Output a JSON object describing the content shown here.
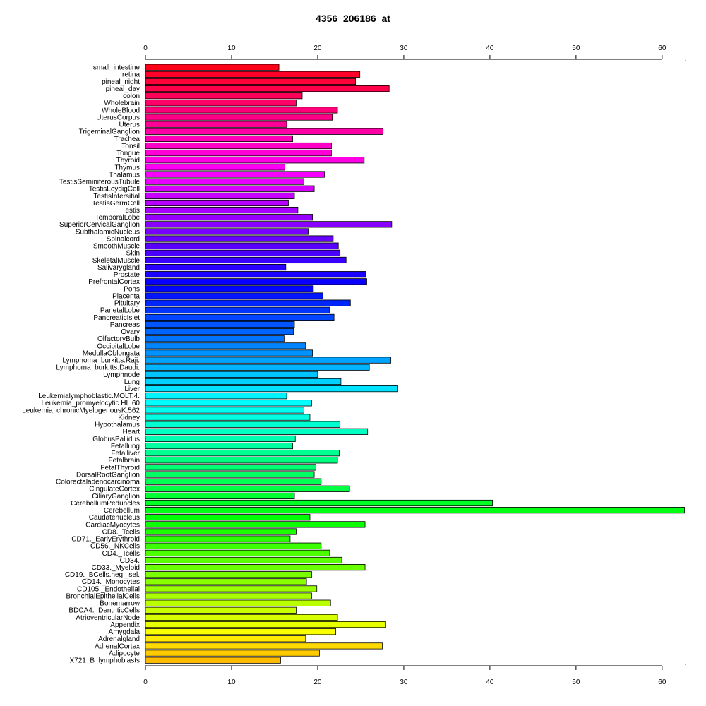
{
  "chart_data": {
    "type": "bar",
    "orientation": "horizontal",
    "title": "4356_206186_at",
    "xlabel": "",
    "ylabel": "",
    "xlim": [
      0,
      62.8
    ],
    "ticks": [
      0,
      10,
      20,
      30,
      40,
      50,
      60
    ],
    "axes": "top-and-bottom",
    "grid": false,
    "categories": [
      "small_intestine",
      "retina",
      "pineal_night",
      "pineal_day",
      "colon",
      "Wholebrain",
      "WholeBlood",
      "UterusCorpus",
      "Uterus",
      "TrigeminalGanglion",
      "Trachea",
      "Tonsil",
      "Tongue",
      "Thyroid",
      "Thymus",
      "Thalamus",
      "TestisSeminiferousTubule",
      "TestisLeydigCell",
      "TestisIntersitial",
      "TestisGermCell",
      "Testis",
      "TemporalLobe",
      "SuperiorCervicalGanglion",
      "SubthalamicNucleus",
      "Spinalcord",
      "SmoothMuscle",
      "Skin",
      "SkeletalMuscle",
      "Salivarygland",
      "Prostate",
      "PrefrontalCortex",
      "Pons",
      "Placenta",
      "Pituitary",
      "ParietalLobe",
      "PancreaticIslet",
      "Pancreas",
      "Ovary",
      "OlfactoryBulb",
      "OccipitalLobe",
      "MedullaOblongata",
      "Lymphoma_burkitts.Raji.",
      "Lymphoma_burkitts.Daudi.",
      "Lymphnode",
      "Lung",
      "Liver",
      "Leukemialymphoblastic.MOLT.4.",
      "Leukemia_promyelocytic.HL.60",
      "Leukemia_chronicMyelogenousK.562",
      "Kidney",
      "Hypothalamus",
      "Heart",
      "GlobusPallidus",
      "Fetallung",
      "Fetalliver",
      "Fetalbrain",
      "FetalThyroid",
      "DorsalRootGanglion",
      "Colorectaladenocarcinoma",
      "CingulateCortex",
      "CiliaryGanglion",
      "CerebellumPeduncles",
      "Cerebellum",
      "Caudatenucleus",
      "CardiacMyocytes",
      "CD8._Tcells",
      "CD71._EarlyErythroid",
      "CD56._NKCells",
      "CD4._Tcells",
      "CD34.",
      "CD33._Myeloid",
      "CD19._BCells.neg._sel.",
      "CD14._Monocytes",
      "CD105._Endothelial",
      "BronchialEpithelialCells",
      "Bonemarrow",
      "BDCA4._DentriticCells",
      "AtrioventricularNode",
      "Appendix",
      "Amygdala",
      "Adrenalgland",
      "AdrenalCortex",
      "Adipocyte",
      "X721_B_lymphoblasts"
    ],
    "values": [
      15.5,
      24.9,
      24.4,
      28.3,
      18.2,
      17.5,
      22.3,
      21.7,
      16.4,
      27.6,
      17.1,
      21.6,
      21.6,
      25.4,
      16.2,
      20.8,
      18.4,
      19.6,
      17.3,
      16.6,
      17.7,
      19.4,
      28.6,
      18.9,
      21.8,
      22.4,
      22.6,
      23.3,
      16.3,
      25.6,
      25.7,
      19.5,
      20.6,
      23.8,
      21.4,
      21.9,
      17.3,
      17.2,
      16.1,
      18.6,
      19.4,
      28.5,
      26.0,
      20.0,
      22.7,
      29.3,
      16.4,
      19.3,
      18.4,
      19.1,
      22.6,
      25.8,
      17.4,
      17.1,
      22.5,
      22.3,
      19.8,
      19.6,
      20.4,
      23.7,
      17.3,
      40.3,
      62.6,
      19.1,
      25.5,
      17.5,
      16.8,
      20.4,
      21.4,
      22.8,
      25.5,
      19.3,
      18.7,
      19.9,
      19.3,
      21.5,
      17.5,
      22.3,
      27.9,
      22.1,
      18.6,
      27.5,
      20.2,
      15.7
    ],
    "colors": [
      "#ff0019",
      "#ff0029",
      "#ff0039",
      "#ff0049",
      "#ff0058",
      "#ff0068",
      "#ff0078",
      "#ff0087",
      "#ff0097",
      "#ff00a7",
      "#ff00b6",
      "#ff00c6",
      "#ff00d6",
      "#ff00e5",
      "#ff00f5",
      "#f600ff",
      "#e600ff",
      "#d600ff",
      "#c700ff",
      "#b700ff",
      "#a700ff",
      "#9700ff",
      "#8800ff",
      "#7800ff",
      "#6800ff",
      "#5800ff",
      "#4900ff",
      "#3900ff",
      "#2900ff",
      "#1a00ff",
      "#0a00ff",
      "#0006ff",
      "#0016ff",
      "#0026ff",
      "#0035ff",
      "#0045ff",
      "#0055ff",
      "#0064ff",
      "#0074ff",
      "#0084ff",
      "#0093ff",
      "#00a3ff",
      "#00b3ff",
      "#00c3ff",
      "#00d2ff",
      "#00e2ff",
      "#00f2ff",
      "#00ffff",
      "#00ffef",
      "#00ffe0",
      "#00ffd0",
      "#00ffc0",
      "#00ffb0",
      "#00ffa1",
      "#00ff91",
      "#00ff81",
      "#00ff72",
      "#00ff62",
      "#00ff52",
      "#00ff42",
      "#00ff33",
      "#00ff23",
      "#00ff13",
      "#00ff04",
      "#0cff00",
      "#1cff00",
      "#2cff00",
      "#3bff00",
      "#4bff00",
      "#5bff00",
      "#6aff00",
      "#7aff00",
      "#8aff00",
      "#9aff00",
      "#a9ff00",
      "#b9ff00",
      "#c9ff00",
      "#d8ff00",
      "#e8ff00",
      "#f8ff00",
      "#ffea00",
      "#ffda00",
      "#ffcb00",
      "#ffbb00"
    ]
  }
}
